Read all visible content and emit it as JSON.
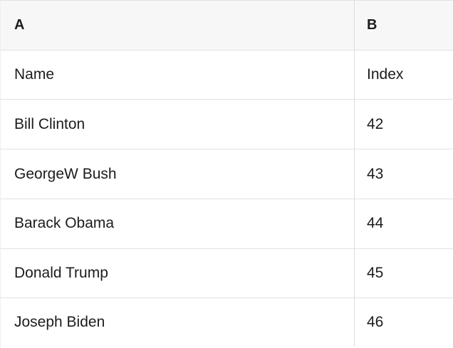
{
  "colors": {
    "header_bg": "#f7f7f7",
    "border": "#e2e2e2",
    "divider": "#dedede",
    "text": "#1c1c1c",
    "body_bg": "#ffffff"
  },
  "table": {
    "columns": [
      {
        "label": "A"
      },
      {
        "label": "B"
      }
    ],
    "rows": [
      {
        "a": "Name",
        "b": "Index"
      },
      {
        "a": "Bill Clinton",
        "b": "42"
      },
      {
        "a": "GeorgeW Bush",
        "b": "43"
      },
      {
        "a": "Barack Obama",
        "b": "44"
      },
      {
        "a": "Donald Trump",
        "b": "45"
      },
      {
        "a": "Joseph Biden",
        "b": "46"
      }
    ]
  }
}
